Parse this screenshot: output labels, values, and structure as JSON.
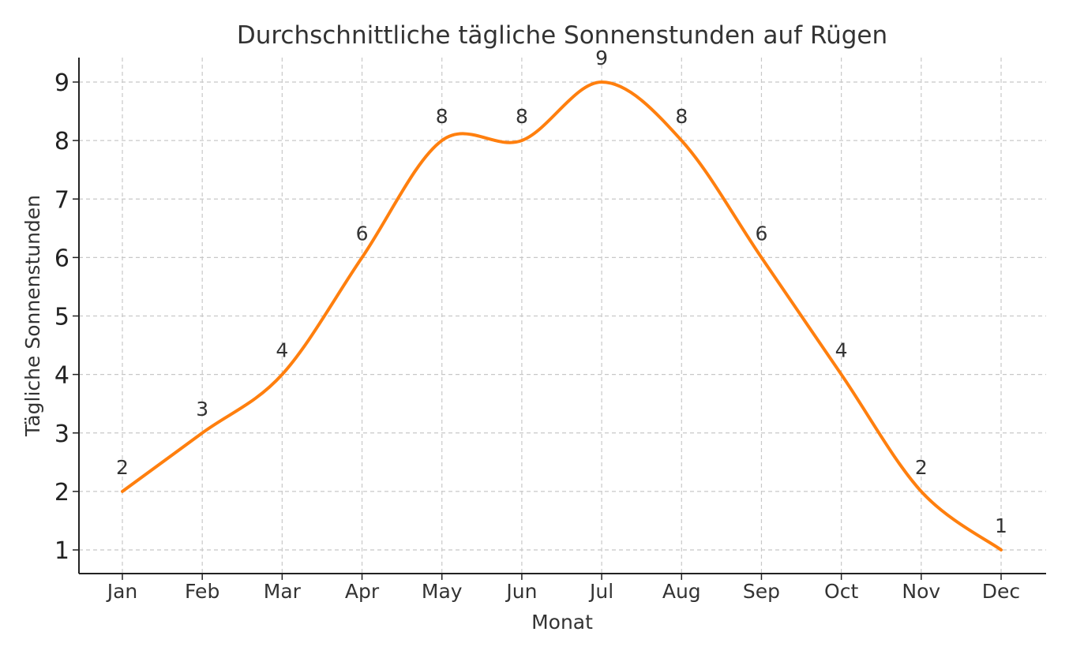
{
  "chart_data": {
    "type": "line",
    "title": "Durchschnittliche tägliche Sonnenstunden auf Rügen",
    "xlabel": "Monat",
    "ylabel": "Tägliche Sonnenstunden",
    "categories": [
      "Jan",
      "Feb",
      "Mar",
      "Apr",
      "May",
      "Jun",
      "Jul",
      "Aug",
      "Sep",
      "Oct",
      "Nov",
      "Dec"
    ],
    "values": [
      2,
      3,
      4,
      6,
      8,
      8,
      9,
      8,
      6,
      4,
      2,
      1
    ],
    "yticks": [
      1,
      2,
      3,
      4,
      5,
      6,
      7,
      8,
      9
    ],
    "ylim": [
      0.6,
      9.4
    ],
    "grid": true,
    "smooth": true,
    "data_labels": true,
    "line_color": "#ff7f0e"
  }
}
